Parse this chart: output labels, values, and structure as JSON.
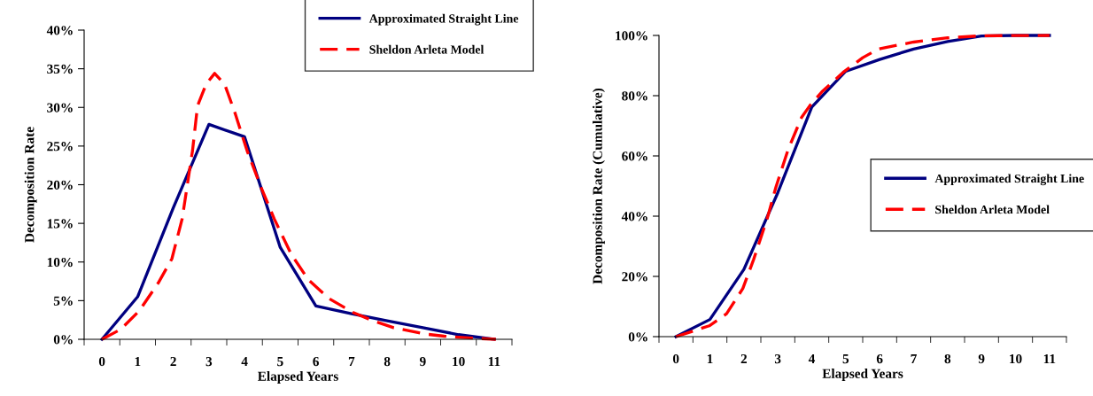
{
  "chart_data": [
    {
      "type": "line",
      "xlabel": "Elapsed Years",
      "ylabel": "Decomposition Rate",
      "legend": "top right",
      "grid": false,
      "xlim": [
        -0.5,
        11.5
      ],
      "xticks": [
        {
          "value": 0,
          "label": "0"
        },
        {
          "value": 1,
          "label": "1"
        },
        {
          "value": 2,
          "label": "2"
        },
        {
          "value": 3,
          "label": "3"
        },
        {
          "value": 4,
          "label": "4"
        },
        {
          "value": 5,
          "label": "5"
        },
        {
          "value": 6,
          "label": "6"
        },
        {
          "value": 7,
          "label": "7"
        },
        {
          "value": 8,
          "label": "8"
        },
        {
          "value": 9,
          "label": "9"
        },
        {
          "value": 10,
          "label": "10"
        },
        {
          "value": 11,
          "label": "11"
        },
        {
          "value": -0.5,
          "label": null
        },
        {
          "value": 0.5,
          "label": null
        },
        {
          "value": 1.5,
          "label": null
        },
        {
          "value": 2.5,
          "label": null
        },
        {
          "value": 3.5,
          "label": null
        },
        {
          "value": 4.5,
          "label": null
        },
        {
          "value": 5.5,
          "label": null
        },
        {
          "value": 6.5,
          "label": null
        },
        {
          "value": 7.5,
          "label": null
        },
        {
          "value": 8.5,
          "label": null
        },
        {
          "value": 9.5,
          "label": null
        },
        {
          "value": 10.5,
          "label": null
        },
        {
          "value": 11.5,
          "label": null
        }
      ],
      "ylim": [
        0,
        40
      ],
      "yticks": [
        {
          "value": 0,
          "label": "0%"
        },
        {
          "value": 5,
          "label": "5%"
        },
        {
          "value": 10,
          "label": "10%"
        },
        {
          "value": 15,
          "label": "15%"
        },
        {
          "value": 20,
          "label": "20%"
        },
        {
          "value": 25,
          "label": "25%"
        },
        {
          "value": 30,
          "label": "30%"
        },
        {
          "value": 35,
          "label": "35%"
        },
        {
          "value": 40,
          "label": "40%"
        }
      ],
      "series": [
        {
          "name": "Approximated Straight Line",
          "color": "#000080",
          "line_style": "solid",
          "x": [
            0,
            1,
            2,
            3,
            4,
            5,
            6,
            7,
            8,
            9,
            10,
            11
          ],
          "values": [
            0,
            5.5,
            17,
            27.8,
            26.2,
            11.9,
            4.3,
            3.3,
            2.4,
            1.5,
            0.6,
            0
          ]
        },
        {
          "name": "Sheldon Arleta Model",
          "color": "#ff0000",
          "line_style": "dashed",
          "x": [
            0,
            0.53,
            1.05,
            1.58,
            1.96,
            2.25,
            2.54,
            2.68,
            2.92,
            3.16,
            3.44,
            3.73,
            4.07,
            4.45,
            4.83,
            5.31,
            5.79,
            6.36,
            7.03,
            7.6,
            8.18,
            9.04,
            9.6,
            10.57,
            11.05
          ],
          "values": [
            0,
            1.3,
            3.7,
            7.3,
            10.4,
            15.6,
            24.4,
            30.2,
            33,
            34.4,
            33,
            29.3,
            24.4,
            19.8,
            15.6,
            11,
            7.7,
            5.3,
            3.5,
            2.4,
            1.5,
            0.7,
            0.4,
            0.1,
            0
          ]
        }
      ]
    },
    {
      "type": "line",
      "xlabel": "Elapsed Years",
      "ylabel": "Decomposition Rate (Cumulative)",
      "legend": "right",
      "grid": false,
      "xlim": [
        -0.5,
        11.5
      ],
      "xticks": [
        {
          "value": 0,
          "label": "0"
        },
        {
          "value": 1,
          "label": "1"
        },
        {
          "value": 2,
          "label": "2"
        },
        {
          "value": 3,
          "label": "3"
        },
        {
          "value": 4,
          "label": "4"
        },
        {
          "value": 5,
          "label": "5"
        },
        {
          "value": 6,
          "label": "6"
        },
        {
          "value": 7,
          "label": "7"
        },
        {
          "value": 8,
          "label": "8"
        },
        {
          "value": 9,
          "label": "9"
        },
        {
          "value": 10,
          "label": "10"
        },
        {
          "value": 11,
          "label": "11"
        },
        {
          "value": -0.5,
          "label": null
        },
        {
          "value": 0.5,
          "label": null
        },
        {
          "value": 1.5,
          "label": null
        },
        {
          "value": 2.5,
          "label": null
        },
        {
          "value": 3.5,
          "label": null
        },
        {
          "value": 4.5,
          "label": null
        },
        {
          "value": 5.5,
          "label": null
        },
        {
          "value": 6.5,
          "label": null
        },
        {
          "value": 7.5,
          "label": null
        },
        {
          "value": 8.5,
          "label": null
        },
        {
          "value": 9.5,
          "label": null
        },
        {
          "value": 10.5,
          "label": null
        },
        {
          "value": 11.5,
          "label": null
        }
      ],
      "ylim": [
        0,
        100
      ],
      "yticks": [
        {
          "value": 0,
          "label": "0%"
        },
        {
          "value": 20,
          "label": "20%"
        },
        {
          "value": 40,
          "label": "40%"
        },
        {
          "value": 60,
          "label": "60%"
        },
        {
          "value": 80,
          "label": "80%"
        },
        {
          "value": 100,
          "label": "100%"
        }
      ],
      "series": [
        {
          "name": "Approximated Straight Line",
          "color": "#000080",
          "line_style": "solid",
          "x": [
            0,
            1,
            2,
            3,
            4,
            5,
            6,
            7,
            8,
            9,
            10,
            11
          ],
          "values": [
            0,
            5.7,
            22.3,
            47.8,
            76.2,
            88.1,
            92,
            95.5,
            98,
            99.8,
            100,
            100
          ]
        },
        {
          "name": "Sheldon Arleta Model",
          "color": "#ff0000",
          "line_style": "dashed",
          "x": [
            0,
            0.98,
            1.49,
            1.97,
            2.29,
            2.69,
            2.94,
            3.3,
            3.7,
            3.95,
            4.3,
            4.95,
            5.5,
            5.96,
            7,
            8,
            9,
            11
          ],
          "values": [
            0,
            3.6,
            7.6,
            16,
            25.7,
            39.3,
            49.5,
            62,
            72.8,
            76.8,
            81.3,
            88,
            92.6,
            95.5,
            97.8,
            99.2,
            99.9,
            100
          ]
        }
      ]
    }
  ]
}
